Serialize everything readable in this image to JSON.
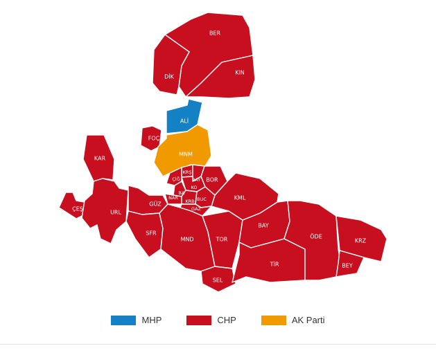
{
  "colors": {
    "MHP": "#1581c5",
    "CHP": "#c70f1f",
    "AK Parti": "#f09a00"
  },
  "districts": [
    {
      "key": "BER",
      "label": "BER",
      "party": "CHP"
    },
    {
      "key": "DIK",
      "label": "DİK",
      "party": "CHP"
    },
    {
      "key": "KIN",
      "label": "KIN",
      "party": "CHP"
    },
    {
      "key": "ALI",
      "label": "ALİ",
      "party": "MHP"
    },
    {
      "key": "FOC",
      "label": "FOÇ",
      "party": "CHP"
    },
    {
      "key": "MNM",
      "label": "MNM",
      "party": "AK Parti"
    },
    {
      "key": "KAR",
      "label": "KAR",
      "party": "CHP"
    },
    {
      "key": "CES",
      "label": "ÇEŞ",
      "party": "CHP"
    },
    {
      "key": "URL",
      "label": "URL",
      "party": "CHP"
    },
    {
      "key": "GUZ",
      "label": "GÜZ",
      "party": "CHP"
    },
    {
      "key": "SFR",
      "label": "SFR",
      "party": "CHP"
    },
    {
      "key": "MND",
      "label": "MND",
      "party": "CHP"
    },
    {
      "key": "TOR",
      "label": "TOR",
      "party": "CHP"
    },
    {
      "key": "SEL",
      "label": "SEL",
      "party": "CHP"
    },
    {
      "key": "TIR",
      "label": "TİR",
      "party": "CHP"
    },
    {
      "key": "BAY",
      "label": "BAY",
      "party": "CHP"
    },
    {
      "key": "KML",
      "label": "KML",
      "party": "CHP"
    },
    {
      "key": "BOR",
      "label": "BOR",
      "party": "CHP"
    },
    {
      "key": "ODE",
      "label": "ÖDE",
      "party": "CHP"
    },
    {
      "key": "KRZ",
      "label": "KRZ",
      "party": "CHP"
    },
    {
      "key": "BEY",
      "label": "BEY",
      "party": "CHP"
    },
    {
      "key": "KRS",
      "label": "KRŞ",
      "party": "CHP"
    },
    {
      "key": "CIG",
      "label": "ÇİĞ",
      "party": "CHP"
    },
    {
      "key": "BAY2",
      "label": "BAY",
      "party": "CHP"
    },
    {
      "key": "KO",
      "label": "KO",
      "party": "CHP"
    },
    {
      "key": "BA",
      "label": "BA",
      "party": "CHP"
    },
    {
      "key": "NAR",
      "label": "NAR",
      "party": "CHP"
    },
    {
      "key": "KRB",
      "label": "KRB",
      "party": "CHP"
    },
    {
      "key": "BUC",
      "label": "BUC",
      "party": "CHP"
    },
    {
      "key": "GAZ",
      "label": "GAZ",
      "party": "CHP"
    }
  ],
  "legend": [
    {
      "label": "MHP",
      "party": "MHP"
    },
    {
      "label": "CHP",
      "party": "CHP"
    },
    {
      "label": "AK Parti",
      "party": "AK Parti"
    }
  ]
}
